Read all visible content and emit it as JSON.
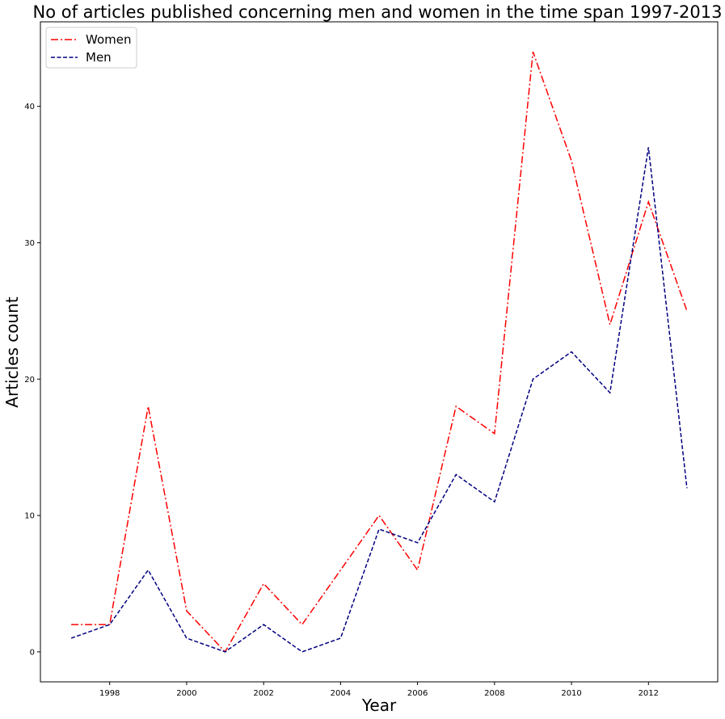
{
  "chart_data": {
    "type": "line",
    "title": "No of articles published concerning men and women in the time span 1997-2013",
    "xlabel": "Year",
    "ylabel": "Articles count",
    "x": [
      1997,
      1998,
      1999,
      2000,
      2001,
      2002,
      2003,
      2004,
      2005,
      2006,
      2007,
      2008,
      2009,
      2010,
      2011,
      2012,
      2013
    ],
    "xlim": [
      1996.2,
      2013.8
    ],
    "ylim": [
      -2.2,
      46.2
    ],
    "xticks": [
      1998,
      2000,
      2002,
      2004,
      2006,
      2008,
      2010,
      2012
    ],
    "yticks": [
      0,
      10,
      20,
      30,
      40
    ],
    "grid": false,
    "legend_position": "upper-left",
    "series": [
      {
        "name": "Women",
        "color": "#ff0000",
        "style": "dash-dot",
        "values": [
          2,
          2,
          18,
          3,
          0,
          5,
          2,
          6,
          10,
          6,
          18,
          16,
          44,
          36,
          24,
          33,
          25
        ]
      },
      {
        "name": "Men",
        "color": "#000080",
        "style": "dashed",
        "values": [
          1,
          2,
          6,
          1,
          0,
          2,
          0,
          1,
          9,
          8,
          13,
          11,
          20,
          22,
          19,
          37,
          12
        ]
      }
    ]
  }
}
